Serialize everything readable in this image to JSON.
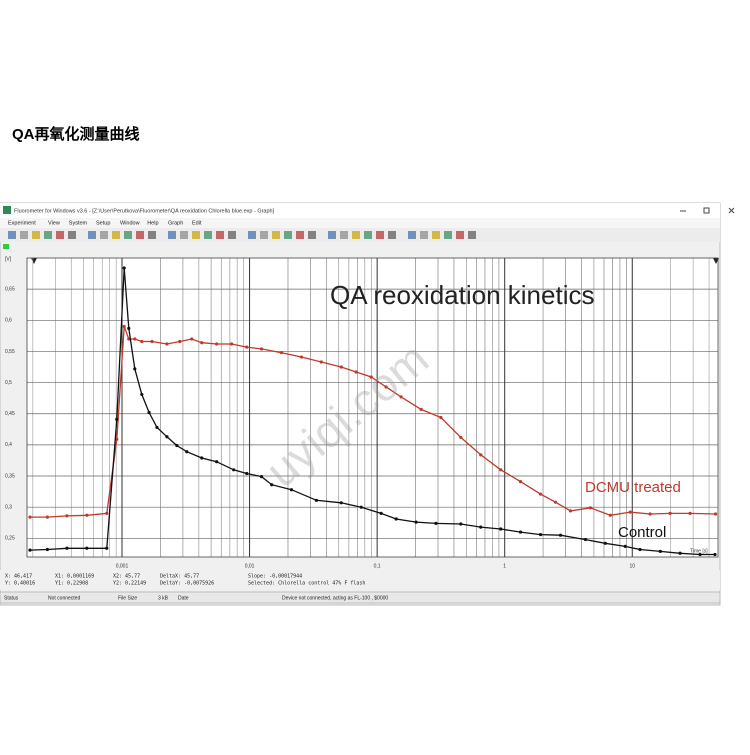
{
  "page_title": "QA再氧化测量曲线",
  "window": {
    "title": "Fluorometer for Windows v3.6 - [Z:\\User\\Perutkova\\Fluorometer\\QA reoxidation Chlorella blue.exp - Graph]",
    "menu": [
      "Experiment",
      "View",
      "System",
      "Setup",
      "Window",
      "Help",
      "Graph",
      "Edit"
    ]
  },
  "chart_data": {
    "type": "line",
    "title": "QA reoxidation kinetics",
    "y_label": "[V]",
    "x_label": "Time [s]",
    "x_scale": "log",
    "grid": true,
    "xlim": [
      0.00018,
      47
    ],
    "ylim": [
      0.22,
      0.7
    ],
    "xticks": [
      {
        "value": 0.001,
        "label": "0,001"
      },
      {
        "value": 0.01,
        "label": "0,01"
      },
      {
        "value": 0.1,
        "label": "0,1"
      },
      1,
      10
    ],
    "yticks": [
      {
        "value": 0.25,
        "label": "0,25"
      },
      {
        "value": 0.3,
        "label": "0,3"
      },
      {
        "value": 0.35,
        "label": "0,35"
      },
      {
        "value": 0.4,
        "label": "0,4"
      },
      {
        "value": 0.45,
        "label": "0,45"
      },
      {
        "value": 0.5,
        "label": "0,5"
      },
      {
        "value": 0.55,
        "label": "0,55"
      },
      {
        "value": 0.6,
        "label": "0,6"
      },
      {
        "value": 0.65,
        "label": "0,65"
      }
    ],
    "series": [
      {
        "name": "DCMU treated",
        "color": "#c0392b",
        "x": [
          0.00019,
          0.00026,
          0.00037,
          0.00053,
          0.00076,
          0.00091,
          0.00104,
          0.00113,
          0.00126,
          0.00143,
          0.00172,
          0.00225,
          0.00284,
          0.00352,
          0.00422,
          0.00552,
          0.00723,
          0.0095,
          0.0124,
          0.0178,
          0.0255,
          0.0365,
          0.0523,
          0.0685,
          0.0898,
          0.1175,
          0.154,
          0.221,
          0.316,
          0.453,
          0.649,
          0.931,
          1.33,
          1.91,
          2.5,
          3.28,
          4.7,
          6.73,
          9.64,
          13.8,
          19.8,
          28.4,
          45
        ],
        "values": [
          0.284,
          0.284,
          0.286,
          0.287,
          0.29,
          0.409,
          0.59,
          0.57,
          0.57,
          0.566,
          0.566,
          0.562,
          0.566,
          0.57,
          0.564,
          0.562,
          0.562,
          0.557,
          0.554,
          0.548,
          0.541,
          0.533,
          0.525,
          0.517,
          0.509,
          0.493,
          0.477,
          0.457,
          0.444,
          0.412,
          0.384,
          0.36,
          0.341,
          0.321,
          0.308,
          0.294,
          0.299,
          0.287,
          0.292,
          0.289,
          0.29,
          0.29,
          0.289
        ]
      },
      {
        "name": "Control",
        "color": "#111111",
        "x": [
          0.00019,
          0.00026,
          0.00037,
          0.00053,
          0.00076,
          0.00091,
          0.00104,
          0.00113,
          0.00126,
          0.00143,
          0.00163,
          0.00188,
          0.00225,
          0.00269,
          0.00322,
          0.00422,
          0.00552,
          0.0075,
          0.0095,
          0.0124,
          0.0149,
          0.0213,
          0.0334,
          0.0523,
          0.075,
          0.1075,
          0.141,
          0.202,
          0.289,
          0.453,
          0.649,
          0.931,
          1.33,
          1.91,
          2.74,
          4.3,
          6.15,
          8.81,
          11.5,
          16.6,
          23.7,
          34,
          44.5
        ],
        "values": [
          0.231,
          0.232,
          0.234,
          0.234,
          0.234,
          0.441,
          0.684,
          0.587,
          0.522,
          0.481,
          0.452,
          0.428,
          0.413,
          0.399,
          0.389,
          0.379,
          0.373,
          0.36,
          0.354,
          0.349,
          0.336,
          0.328,
          0.311,
          0.307,
          0.3,
          0.29,
          0.281,
          0.276,
          0.274,
          0.273,
          0.268,
          0.265,
          0.26,
          0.256,
          0.255,
          0.248,
          0.242,
          0.237,
          0.232,
          0.229,
          0.226,
          0.224,
          0.224
        ]
      }
    ]
  },
  "readouts": [
    "X: 46,417",
    "X1: 0,0001169",
    "X2: 45,77",
    "DeltaX: 45,77",
    "Slope: -0,00017944",
    "Y: 0,40016",
    "Y1: 0,22908",
    "Y2: 0,22149",
    "DeltaY: -0,0075926",
    "Selected: Chlorella control 47% F flash"
  ],
  "status_bar": [
    "Status",
    "Not connected",
    "File Size",
    "3 kB",
    "Date",
    "Device not connected, acting as FL-100 , $0000"
  ],
  "watermark": "uyiqi.com"
}
